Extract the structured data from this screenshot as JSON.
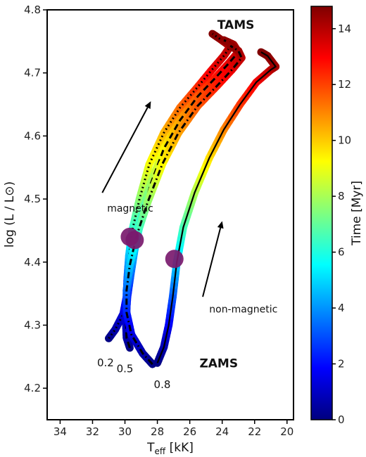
{
  "chart_data": {
    "type": "line",
    "xlabel_main": "T",
    "xlabel_sub": "eff",
    "xlabel_unit": " [kK]",
    "ylabel": "log (L / L⊙)",
    "colorbar_label": "Time [Myr]",
    "xlim": [
      34.8,
      19.6
    ],
    "ylim": [
      4.15,
      4.8
    ],
    "x_ticks": [
      34,
      32,
      30,
      28,
      26,
      24,
      22,
      20
    ],
    "y_ticks": [
      4.2,
      4.3,
      4.4,
      4.5,
      4.6,
      4.7,
      4.8
    ],
    "colorbar_range": [
      0,
      14.8
    ],
    "colorbar_ticks": [
      0,
      2,
      4,
      6,
      8,
      10,
      12,
      14
    ],
    "colormap": [
      "#00007f",
      "#0000ff",
      "#007fff",
      "#00ffff",
      "#7fff7f",
      "#ffff00",
      "#ff7f00",
      "#ff0000",
      "#7f0000"
    ],
    "series": [
      {
        "style": "dotted",
        "points": [
          [
            31.0,
            4.279,
            0.0
          ],
          [
            30.6,
            4.293,
            0.5
          ],
          [
            30.1,
            4.318,
            1.2
          ],
          [
            29.9,
            4.345,
            2.0
          ],
          [
            29.85,
            4.375,
            3.0
          ],
          [
            29.75,
            4.41,
            4.5
          ],
          [
            29.55,
            4.45,
            6.0
          ],
          [
            29.1,
            4.5,
            7.5
          ],
          [
            28.5,
            4.555,
            9.0
          ],
          [
            27.6,
            4.605,
            10.2
          ],
          [
            26.6,
            4.645,
            11.3
          ],
          [
            25.6,
            4.675,
            12.2
          ],
          [
            24.7,
            4.703,
            13.0
          ],
          [
            23.9,
            4.727,
            13.6
          ],
          [
            23.5,
            4.742,
            14.0
          ],
          [
            24.2,
            4.755,
            14.4
          ],
          [
            24.6,
            4.762,
            14.8
          ]
        ]
      },
      {
        "style": "dashed",
        "points": [
          [
            29.7,
            4.264,
            0.0
          ],
          [
            29.9,
            4.28,
            0.5
          ],
          [
            29.95,
            4.31,
            1.2
          ],
          [
            29.85,
            4.345,
            2.0
          ],
          [
            29.65,
            4.38,
            3.2
          ],
          [
            29.4,
            4.42,
            4.6
          ],
          [
            29.0,
            4.47,
            6.2
          ],
          [
            28.4,
            4.525,
            7.8
          ],
          [
            27.6,
            4.58,
            9.3
          ],
          [
            26.6,
            4.625,
            10.5
          ],
          [
            25.5,
            4.663,
            11.6
          ],
          [
            24.5,
            4.69,
            12.5
          ],
          [
            23.6,
            4.715,
            13.2
          ],
          [
            23.0,
            4.733,
            13.8
          ],
          [
            23.3,
            4.745,
            14.2
          ],
          [
            23.9,
            4.752,
            14.6
          ]
        ]
      },
      {
        "style": "dashdot",
        "points": [
          [
            28.3,
            4.238,
            0.0
          ],
          [
            28.9,
            4.255,
            0.5
          ],
          [
            29.6,
            4.285,
            1.3
          ],
          [
            29.9,
            4.32,
            2.2
          ],
          [
            29.9,
            4.355,
            3.2
          ],
          [
            29.7,
            4.395,
            4.6
          ],
          [
            29.3,
            4.44,
            6.0
          ],
          [
            28.6,
            4.495,
            7.6
          ],
          [
            27.7,
            4.555,
            9.2
          ],
          [
            26.7,
            4.605,
            10.5
          ],
          [
            25.5,
            4.648,
            11.6
          ],
          [
            24.3,
            4.68,
            12.5
          ],
          [
            23.4,
            4.705,
            13.2
          ],
          [
            22.8,
            4.724,
            13.8
          ],
          [
            23.0,
            4.735,
            14.2
          ],
          [
            23.5,
            4.743,
            14.6
          ]
        ]
      },
      {
        "style": "solid",
        "points": [
          [
            28.0,
            4.24,
            0.0
          ],
          [
            27.6,
            4.265,
            0.6
          ],
          [
            27.3,
            4.3,
            1.6
          ],
          [
            27.05,
            4.345,
            3.0
          ],
          [
            26.8,
            4.4,
            4.8
          ],
          [
            26.4,
            4.455,
            6.5
          ],
          [
            25.7,
            4.51,
            8.0
          ],
          [
            24.8,
            4.565,
            9.6
          ],
          [
            23.9,
            4.61,
            10.9
          ],
          [
            22.9,
            4.65,
            12.1
          ],
          [
            21.9,
            4.685,
            13.0
          ],
          [
            21.0,
            4.705,
            13.8
          ],
          [
            20.7,
            4.71,
            14.2
          ],
          [
            21.2,
            4.727,
            14.6
          ],
          [
            21.6,
            4.733,
            14.8
          ]
        ]
      }
    ],
    "markers": [
      [
        29.7,
        4.44
      ],
      [
        29.4,
        4.435
      ],
      [
        26.95,
        4.405
      ]
    ],
    "marker_color": "#7a1a6e",
    "annotations": {
      "tams": {
        "text": "TAMS",
        "x": 24.3,
        "y": 4.77
      },
      "zams": {
        "text": "ZAMS",
        "x": 25.4,
        "y": 4.233
      },
      "magnetic": {
        "text": "magnetic",
        "x": 31.1,
        "y": 4.48
      },
      "non_magnetic": {
        "text": "non-magnetic",
        "x": 24.8,
        "y": 4.32
      },
      "lab_02": {
        "text": "0.2",
        "x": 31.2,
        "y": 4.235
      },
      "lab_05": {
        "text": "0.5",
        "x": 30.0,
        "y": 4.225
      },
      "lab_08": {
        "text": "0.8",
        "x": 27.7,
        "y": 4.2
      }
    },
    "arrows": [
      {
        "from": [
          31.4,
          4.51
        ],
        "to": [
          28.4,
          4.655
        ]
      },
      {
        "from": [
          25.2,
          4.345
        ],
        "to": [
          24.0,
          4.465
        ]
      }
    ]
  }
}
